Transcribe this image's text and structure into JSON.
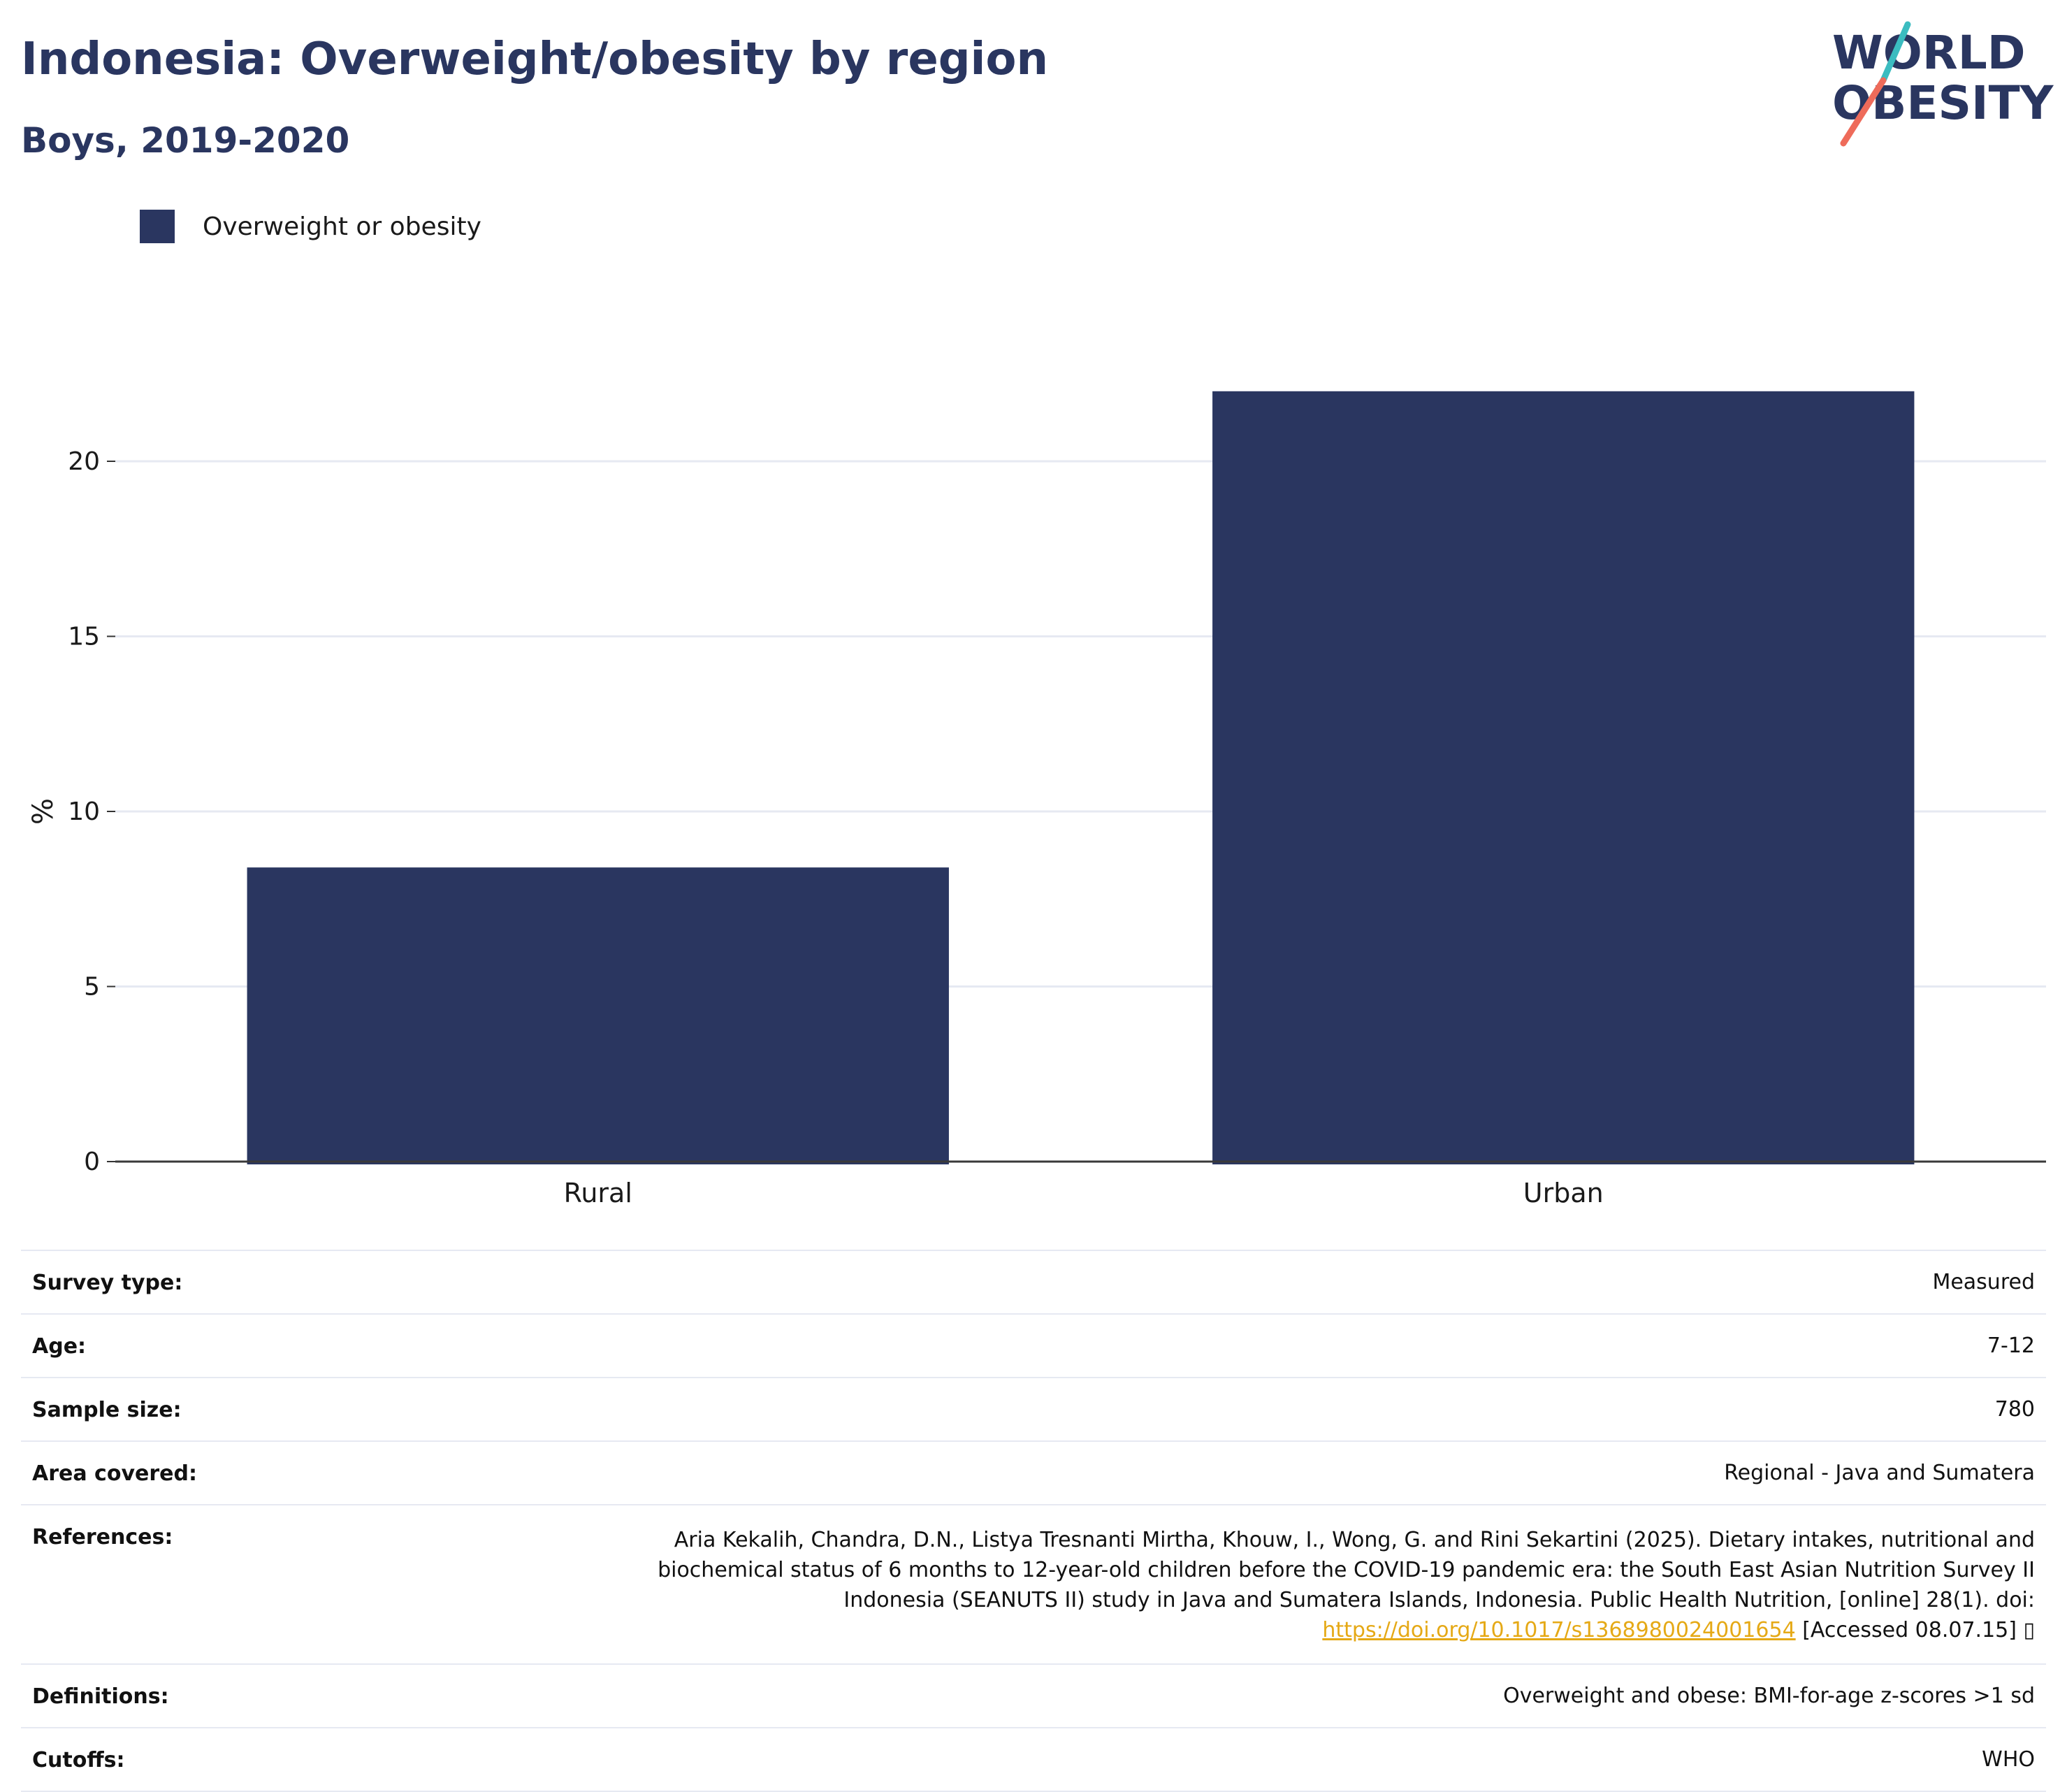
{
  "title": "Indonesia: Overweight/obesity by region",
  "subtitle": "Boys, 2019-2020",
  "logo": {
    "line1": "WORLD",
    "line2": "OBESITY"
  },
  "colors": {
    "bar": "#2a3660",
    "grid": "#e6e9f2",
    "link": "#e5a916",
    "logo_teal": "#3bbcc0",
    "logo_coral": "#ee6b5a"
  },
  "legend": {
    "label": "Overweight or obesity"
  },
  "chart_data": {
    "type": "bar",
    "categories": [
      "Rural",
      "Urban"
    ],
    "series": [
      {
        "name": "Overweight or obesity",
        "values": [
          8.4,
          22
        ]
      }
    ],
    "ylabel": "%",
    "xlabel": "",
    "ylim": [
      0,
      25
    ],
    "yticks": [
      0,
      5,
      10,
      15,
      20
    ],
    "grid": true,
    "legend_position": "top-left"
  },
  "meta": {
    "survey_type": {
      "label": "Survey type:",
      "value": "Measured"
    },
    "age": {
      "label": "Age:",
      "value": "7-12"
    },
    "sample_size": {
      "label": "Sample size:",
      "value": "780"
    },
    "area_covered": {
      "label": "Area covered:",
      "value": "Regional - Java and Sumatera"
    },
    "references": {
      "label": "References:",
      "text_line1": "Aria Kekalih, Chandra, D.N., Listya Tresnanti Mirtha, Khouw, I., Wong, G. and Rini Sekartini (2025). Dietary intakes, nutritional and",
      "text_line2": "biochemical status of 6 months to 12-year-old children before the COVID-19 pandemic era: the South East Asian Nutrition Survey II",
      "text_line3": "Indonesia (SEANUTS II) study in Java and Sumatera Islands, Indonesia. Public Health Nutrition, [online] 28(1). doi:",
      "link": "https://doi.org/10.1017/s1368980024001654",
      "suffix": " [Accessed 08.07.15] ▯"
    },
    "definitions": {
      "label": "Definitions:",
      "value": "Overweight and obese: BMI-for-age z-scores >1 sd"
    },
    "cutoffs": {
      "label": "Cutoffs:",
      "value": "WHO"
    }
  }
}
